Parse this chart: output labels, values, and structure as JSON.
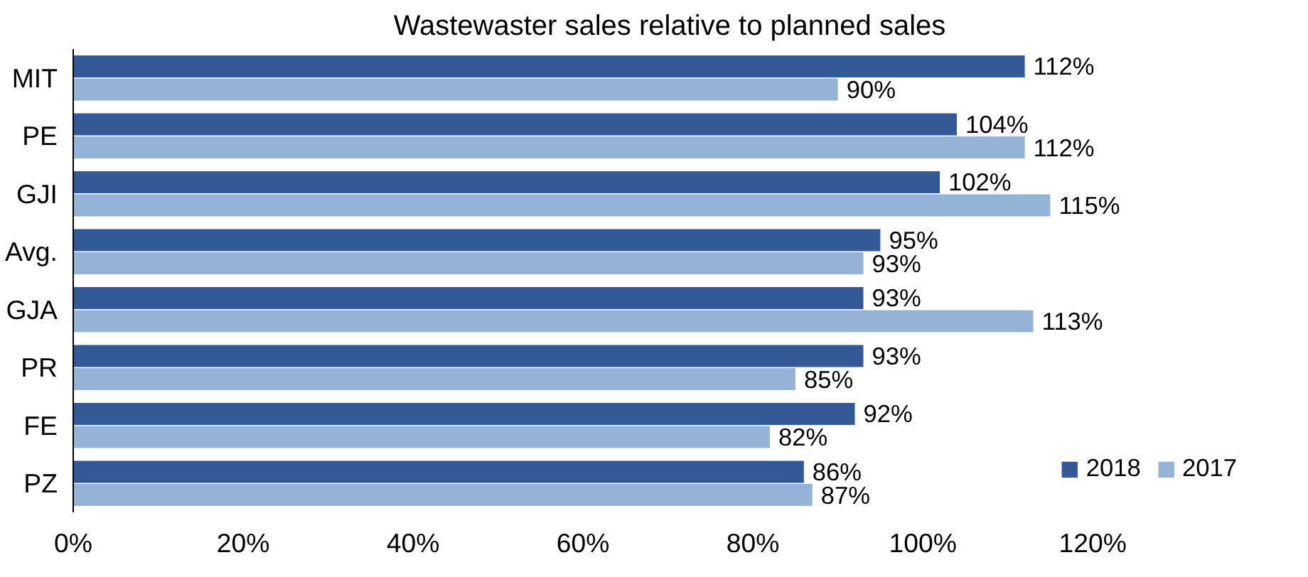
{
  "chart_data": {
    "type": "bar",
    "orientation": "horizontal",
    "title": "Wastewaster sales relative to planned sales",
    "categories": [
      "MIT",
      "PE",
      "GJI",
      "Avg.",
      "GJA",
      "PR",
      "FE",
      "PZ"
    ],
    "series": [
      {
        "name": "2018",
        "color": "#335a96",
        "values": [
          112,
          104,
          102,
          95,
          93,
          93,
          92,
          86
        ],
        "value_labels": [
          "112%",
          "104%",
          "102%",
          "95%",
          "93%",
          "93%",
          "92%",
          "86%"
        ]
      },
      {
        "name": "2017",
        "color": "#95b3d7",
        "values": [
          90,
          112,
          115,
          93,
          113,
          85,
          82,
          87
        ],
        "value_labels": [
          "90%",
          "112%",
          "115%",
          "93%",
          "113%",
          "85%",
          "82%",
          "87%"
        ]
      }
    ],
    "xlim": [
      0,
      120
    ],
    "xticks": [
      {
        "value": 0,
        "label": "0%"
      },
      {
        "value": 20,
        "label": "20%"
      },
      {
        "value": 40,
        "label": "40%"
      },
      {
        "value": 60,
        "label": "60%"
      },
      {
        "value": 80,
        "label": "80%"
      },
      {
        "value": 100,
        "label": "100%"
      },
      {
        "value": 120,
        "label": "120%"
      }
    ],
    "grid": false,
    "legend": "bottom right"
  }
}
